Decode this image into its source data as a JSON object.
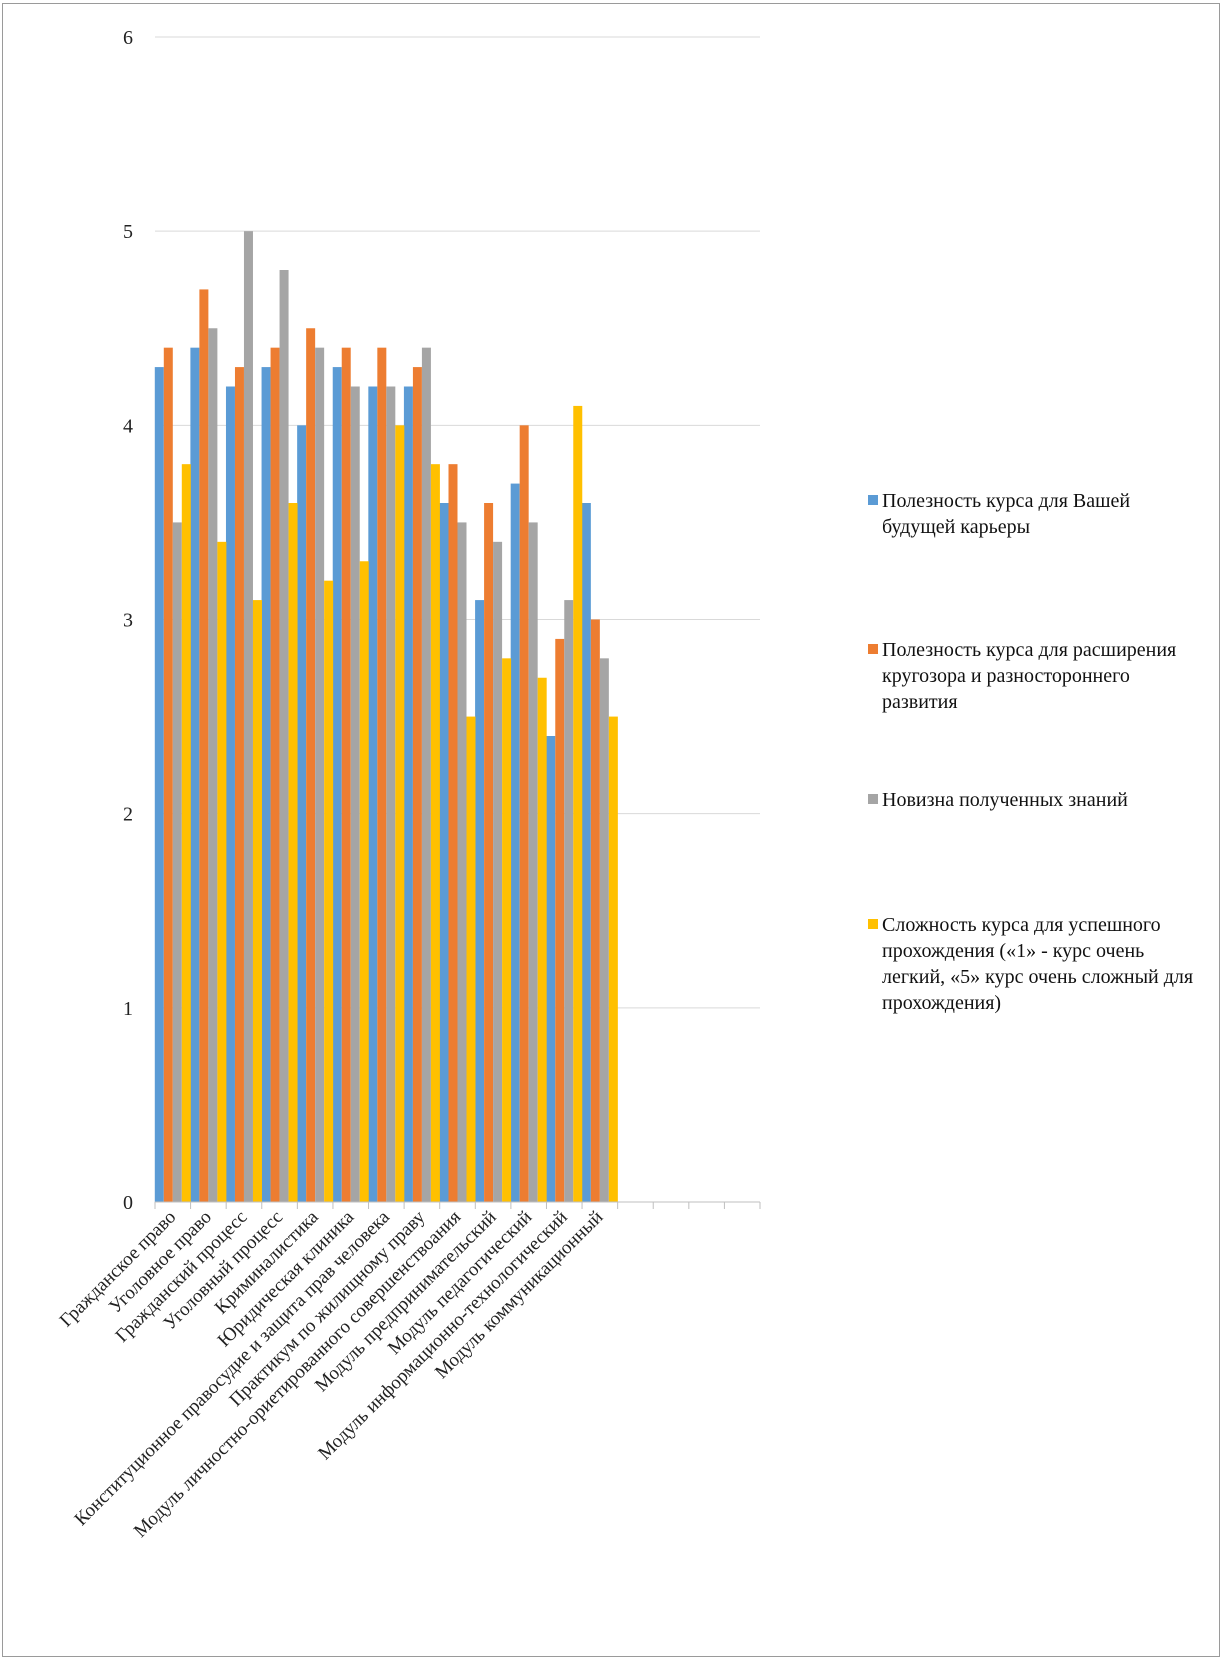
{
  "chart_data": {
    "type": "bar",
    "title": "",
    "xlabel": "",
    "ylabel": "",
    "ylim": [
      0,
      6
    ],
    "yticks": [
      0,
      1,
      2,
      3,
      4,
      5,
      6
    ],
    "grid": true,
    "legend_position": "right",
    "categories": [
      "Гражданское право",
      "Уголовное право",
      "Гражданский процесс",
      "Уголовный процесс",
      "Криминалистика",
      "Юридическая клиника",
      "Конституционное правосудие и защита прав человека",
      "Практикум по жилищному праву",
      "Модуль личностно-ориетированного совершенствоания",
      "Модуль предпринимательский",
      "Модуль педагогический",
      "Модуль информационно-технологический",
      "Модуль коммуникационный",
      "",
      "",
      "",
      ""
    ],
    "series": [
      {
        "name": "Полезность курса для Вашей будущей карьеры",
        "color": "#5B9BD5",
        "values": [
          4.3,
          4.4,
          4.2,
          4.3,
          4.0,
          4.3,
          4.2,
          4.2,
          3.6,
          3.1,
          3.7,
          2.4,
          3.6,
          null,
          null,
          null,
          null
        ]
      },
      {
        "name": "Полезность курса для расширения кругозора и разностороннего развития",
        "color": "#ED7D31",
        "values": [
          4.4,
          4.7,
          4.3,
          4.4,
          4.5,
          4.4,
          4.4,
          4.3,
          3.8,
          3.6,
          4.0,
          2.9,
          3.0,
          null,
          null,
          null,
          null
        ]
      },
      {
        "name": "Новизна полученных знаний",
        "color": "#A5A5A5",
        "values": [
          3.5,
          4.5,
          5.0,
          4.8,
          4.4,
          4.2,
          4.2,
          4.4,
          3.5,
          3.4,
          3.5,
          3.1,
          2.8,
          null,
          null,
          null,
          null
        ]
      },
      {
        "name": "Сложность курса для успешного прохождения («1» - курс очень легкий, «5» курс очень сложный для прохождения)",
        "color": "#FFC000",
        "values": [
          3.8,
          3.4,
          3.1,
          3.6,
          3.2,
          3.3,
          4.0,
          3.8,
          2.5,
          2.8,
          2.7,
          4.1,
          2.5,
          null,
          null,
          null,
          null
        ]
      }
    ]
  }
}
